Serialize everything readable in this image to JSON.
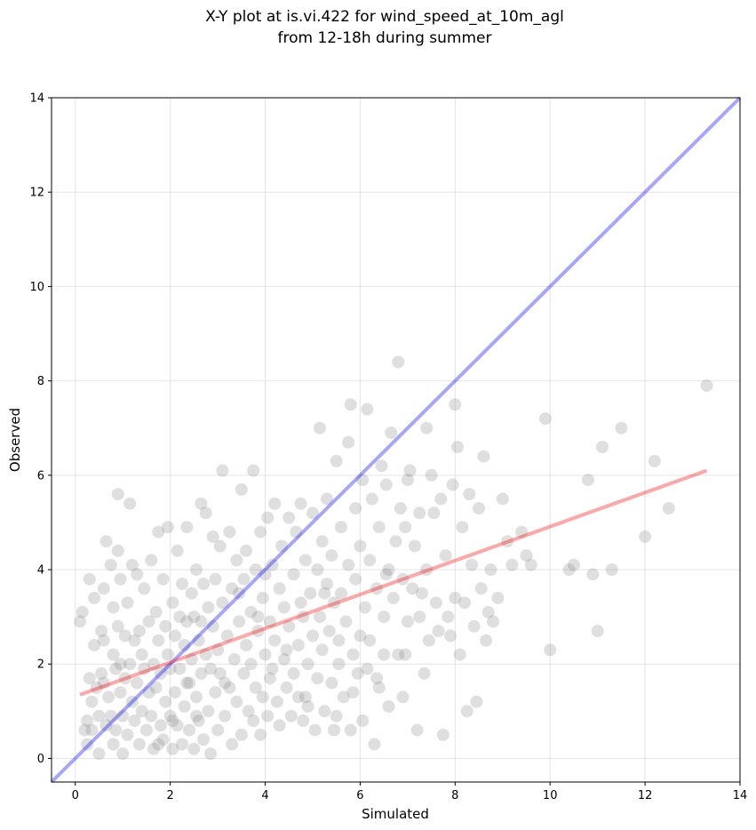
{
  "chart_data": {
    "type": "scatter",
    "title_lines": [
      "X-Y plot at is.vi.422 for wind_speed_at_10m_agl",
      "from 12-18h during summer"
    ],
    "xlabel": "Simulated",
    "ylabel": "Observed",
    "xlim": [
      -0.5,
      14
    ],
    "ylim": [
      -0.5,
      14
    ],
    "x_ticks": [
      0,
      2,
      4,
      6,
      8,
      10,
      12,
      14
    ],
    "y_ticks": [
      0,
      2,
      4,
      6,
      8,
      10,
      12,
      14
    ],
    "grid": true,
    "marker_color": "#808080",
    "reference_line": {
      "from": [
        -0.5,
        -0.5
      ],
      "to": [
        14,
        14
      ],
      "color": "#0000ff"
    },
    "fit_line": {
      "from": [
        0.1,
        1.35
      ],
      "to": [
        13.3,
        6.1
      ],
      "color": "#ff0000"
    },
    "points": [
      [
        0.1,
        2.9
      ],
      [
        0.15,
        3.1
      ],
      [
        0.2,
        0.6
      ],
      [
        0.25,
        0.8
      ],
      [
        0.25,
        0.3
      ],
      [
        0.3,
        3.8
      ],
      [
        0.3,
        1.7
      ],
      [
        0.35,
        1.2
      ],
      [
        0.35,
        0.6
      ],
      [
        0.4,
        3.4
      ],
      [
        0.4,
        2.4
      ],
      [
        0.45,
        1.5
      ],
      [
        0.5,
        0.9
      ],
      [
        0.5,
        0.1
      ],
      [
        0.55,
        2.7
      ],
      [
        0.55,
        1.8
      ],
      [
        0.6,
        3.6
      ],
      [
        0.6,
        2.5
      ],
      [
        0.6,
        1.6
      ],
      [
        0.65,
        0.7
      ],
      [
        0.65,
        4.6
      ],
      [
        0.7,
        1.3
      ],
      [
        0.75,
        4.1
      ],
      [
        0.75,
        0.9
      ],
      [
        0.8,
        3.2
      ],
      [
        0.8,
        2.2
      ],
      [
        0.8,
        0.3
      ],
      [
        0.85,
        1.9
      ],
      [
        0.85,
        0.6
      ],
      [
        0.9,
        5.6
      ],
      [
        0.9,
        4.4
      ],
      [
        0.9,
        2.8
      ],
      [
        0.95,
        3.8
      ],
      [
        0.95,
        1.4
      ],
      [
        1.0,
        0.9
      ],
      [
        1.0,
        0.1
      ],
      [
        1.05,
        2.6
      ],
      [
        1.05,
        1.7
      ],
      [
        1.1,
        3.3
      ],
      [
        1.1,
        0.5
      ],
      [
        1.15,
        5.4
      ],
      [
        1.15,
        2.0
      ],
      [
        1.2,
        4.1
      ],
      [
        1.2,
        1.2
      ],
      [
        1.25,
        2.5
      ],
      [
        1.25,
        0.8
      ],
      [
        1.3,
        3.9
      ],
      [
        1.3,
        1.6
      ],
      [
        1.35,
        0.3
      ],
      [
        1.4,
        2.2
      ],
      [
        1.4,
        1.0
      ],
      [
        1.45,
        3.6
      ],
      [
        1.45,
        1.9
      ],
      [
        1.5,
        0.6
      ],
      [
        1.55,
        2.9
      ],
      [
        1.55,
        1.4
      ],
      [
        1.6,
        4.2
      ],
      [
        1.6,
        0.9
      ],
      [
        1.65,
        2.0
      ],
      [
        1.65,
        0.2
      ],
      [
        1.7,
        3.1
      ],
      [
        1.7,
        1.5
      ],
      [
        1.75,
        4.8
      ],
      [
        1.75,
        2.5
      ],
      [
        1.8,
        0.7
      ],
      [
        1.8,
        1.8
      ],
      [
        1.85,
        3.8
      ],
      [
        1.85,
        0.4
      ],
      [
        1.9,
        2.8
      ],
      [
        1.9,
        1.2
      ],
      [
        1.95,
        4.9
      ],
      [
        1.95,
        2.2
      ],
      [
        2.0,
        0.9
      ],
      [
        2.0,
        1.9
      ],
      [
        2.05,
        3.3
      ],
      [
        2.05,
        0.2
      ],
      [
        2.1,
        2.6
      ],
      [
        2.1,
        1.4
      ],
      [
        2.15,
        4.4
      ],
      [
        2.15,
        0.7
      ],
      [
        2.2,
        3.0
      ],
      [
        2.2,
        1.9
      ],
      [
        2.25,
        3.7
      ],
      [
        2.25,
        0.3
      ],
      [
        2.3,
        2.4
      ],
      [
        2.3,
        1.1
      ],
      [
        2.35,
        4.9
      ],
      [
        2.35,
        2.9
      ],
      [
        2.4,
        0.6
      ],
      [
        2.4,
        1.6
      ],
      [
        2.45,
        3.5
      ],
      [
        2.45,
        2.1
      ],
      [
        2.5,
        0.2
      ],
      [
        2.5,
        3.0
      ],
      [
        2.55,
        1.3
      ],
      [
        2.55,
        4.0
      ],
      [
        2.6,
        2.5
      ],
      [
        2.6,
        0.8
      ],
      [
        2.65,
        5.4
      ],
      [
        2.65,
        1.8
      ],
      [
        2.7,
        3.7
      ],
      [
        2.7,
        0.4
      ],
      [
        2.75,
        2.2
      ],
      [
        2.75,
        5.2
      ],
      [
        2.8,
        1.0
      ],
      [
        2.8,
        3.2
      ],
      [
        2.85,
        1.9
      ],
      [
        2.85,
        0.1
      ],
      [
        2.9,
        4.7
      ],
      [
        2.9,
        2.8
      ],
      [
        2.95,
        1.4
      ],
      [
        2.95,
        3.8
      ],
      [
        3.0,
        0.6
      ],
      [
        3.0,
        2.3
      ],
      [
        3.05,
        4.5
      ],
      [
        3.05,
        1.8
      ],
      [
        3.1,
        6.1
      ],
      [
        3.1,
        3.3
      ],
      [
        3.15,
        0.9
      ],
      [
        3.2,
        2.6
      ],
      [
        3.25,
        4.8
      ],
      [
        3.25,
        1.5
      ],
      [
        3.3,
        3.6
      ],
      [
        3.3,
        0.3
      ],
      [
        3.35,
        2.1
      ],
      [
        3.4,
        4.2
      ],
      [
        3.4,
        1.2
      ],
      [
        3.45,
        2.9
      ],
      [
        3.5,
        5.7
      ],
      [
        3.5,
        0.5
      ],
      [
        3.55,
        3.8
      ],
      [
        3.55,
        1.8
      ],
      [
        3.6,
        2.4
      ],
      [
        3.6,
        4.4
      ],
      [
        3.65,
        1.0
      ],
      [
        3.7,
        3.1
      ],
      [
        3.7,
        2.0
      ],
      [
        3.75,
        6.1
      ],
      [
        3.75,
        0.8
      ],
      [
        3.8,
        4.0
      ],
      [
        3.8,
        1.5
      ],
      [
        3.85,
        2.7
      ],
      [
        3.9,
        4.8
      ],
      [
        3.9,
        0.5
      ],
      [
        3.95,
        3.4
      ],
      [
        3.95,
        1.3
      ],
      [
        4.0,
        2.2
      ],
      [
        4.0,
        3.9
      ],
      [
        4.05,
        5.1
      ],
      [
        4.05,
        0.9
      ],
      [
        4.1,
        2.9
      ],
      [
        4.1,
        1.7
      ],
      [
        4.15,
        4.1
      ],
      [
        4.2,
        2.5
      ],
      [
        4.2,
        5.4
      ],
      [
        4.25,
        1.2
      ],
      [
        4.3,
        3.6
      ],
      [
        4.3,
        0.7
      ],
      [
        4.35,
        4.5
      ],
      [
        4.4,
        2.1
      ],
      [
        4.4,
        3.2
      ],
      [
        4.45,
        1.5
      ],
      [
        4.5,
        5.1
      ],
      [
        4.5,
        2.8
      ],
      [
        4.55,
        0.9
      ],
      [
        4.6,
        3.9
      ],
      [
        4.6,
        1.8
      ],
      [
        4.65,
        4.8
      ],
      [
        4.7,
        2.4
      ],
      [
        4.7,
        1.3
      ],
      [
        4.75,
        5.4
      ],
      [
        4.8,
        3.0
      ],
      [
        4.8,
        0.8
      ],
      [
        4.85,
        4.2
      ],
      [
        4.9,
        2.0
      ],
      [
        4.9,
        1.1
      ],
      [
        4.95,
        3.5
      ],
      [
        5.0,
        5.2
      ],
      [
        5.0,
        2.6
      ],
      [
        5.05,
        0.6
      ],
      [
        5.1,
        4.0
      ],
      [
        5.1,
        1.7
      ],
      [
        5.15,
        7.0
      ],
      [
        5.15,
        3.0
      ],
      [
        5.2,
        4.6
      ],
      [
        5.2,
        2.3
      ],
      [
        5.25,
        1.0
      ],
      [
        5.3,
        5.5
      ],
      [
        5.3,
        3.7
      ],
      [
        5.35,
        2.7
      ],
      [
        5.4,
        1.6
      ],
      [
        5.4,
        4.3
      ],
      [
        5.45,
        3.3
      ],
      [
        5.5,
        6.3
      ],
      [
        5.5,
        0.9
      ],
      [
        5.55,
        2.0
      ],
      [
        5.6,
        4.9
      ],
      [
        5.6,
        3.5
      ],
      [
        5.65,
        1.3
      ],
      [
        5.7,
        2.9
      ],
      [
        5.75,
        6.7
      ],
      [
        5.75,
        4.1
      ],
      [
        5.8,
        7.5
      ],
      [
        5.8,
        0.6
      ],
      [
        5.85,
        2.2
      ],
      [
        5.9,
        5.3
      ],
      [
        5.9,
        3.8
      ],
      [
        5.95,
        1.8
      ],
      [
        6.0,
        4.5
      ],
      [
        6.0,
        2.6
      ],
      [
        6.05,
        5.9
      ],
      [
        6.05,
        0.8
      ],
      [
        6.1,
        3.2
      ],
      [
        6.15,
        7.4
      ],
      [
        6.15,
        1.9
      ],
      [
        6.2,
        4.2
      ],
      [
        6.2,
        2.5
      ],
      [
        6.25,
        5.5
      ],
      [
        6.3,
        0.3
      ],
      [
        6.35,
        3.6
      ],
      [
        6.4,
        4.9
      ],
      [
        6.4,
        1.5
      ],
      [
        6.45,
        6.2
      ],
      [
        6.5,
        3.0
      ],
      [
        6.5,
        2.2
      ],
      [
        6.55,
        5.8
      ],
      [
        6.6,
        4.0
      ],
      [
        6.6,
        1.1
      ],
      [
        6.65,
        6.9
      ],
      [
        6.7,
        3.4
      ],
      [
        6.75,
        4.6
      ],
      [
        6.8,
        8.4
      ],
      [
        6.8,
        2.2
      ],
      [
        6.85,
        5.3
      ],
      [
        6.9,
        1.3
      ],
      [
        6.9,
        3.8
      ],
      [
        6.95,
        4.9
      ],
      [
        7.0,
        5.9
      ],
      [
        7.0,
        2.9
      ],
      [
        7.05,
        6.1
      ],
      [
        7.1,
        3.6
      ],
      [
        7.15,
        4.5
      ],
      [
        7.2,
        0.6
      ],
      [
        7.25,
        5.2
      ],
      [
        7.3,
        3.5
      ],
      [
        7.35,
        1.8
      ],
      [
        7.4,
        7.0
      ],
      [
        7.4,
        4.0
      ],
      [
        7.45,
        2.5
      ],
      [
        7.5,
        6.0
      ],
      [
        7.55,
        5.2
      ],
      [
        7.6,
        3.3
      ],
      [
        7.65,
        2.7
      ],
      [
        7.7,
        5.5
      ],
      [
        7.75,
        0.5
      ],
      [
        7.8,
        4.3
      ],
      [
        7.85,
        3.0
      ],
      [
        7.9,
        2.6
      ],
      [
        7.95,
        5.8
      ],
      [
        8.0,
        7.5
      ],
      [
        8.0,
        3.4
      ],
      [
        8.05,
        6.6
      ],
      [
        8.1,
        2.2
      ],
      [
        8.15,
        4.9
      ],
      [
        8.2,
        3.3
      ],
      [
        8.25,
        1.0
      ],
      [
        8.3,
        5.6
      ],
      [
        8.35,
        4.1
      ],
      [
        8.4,
        2.8
      ],
      [
        8.45,
        1.2
      ],
      [
        8.5,
        5.3
      ],
      [
        8.55,
        3.6
      ],
      [
        8.6,
        6.4
      ],
      [
        8.65,
        2.5
      ],
      [
        8.7,
        3.1
      ],
      [
        8.75,
        4.0
      ],
      [
        8.8,
        2.9
      ],
      [
        8.9,
        3.4
      ],
      [
        9.0,
        5.5
      ],
      [
        9.1,
        4.6
      ],
      [
        9.2,
        4.1
      ],
      [
        9.4,
        4.8
      ],
      [
        9.5,
        4.3
      ],
      [
        9.6,
        4.1
      ],
      [
        9.9,
        7.2
      ],
      [
        10.0,
        2.3
      ],
      [
        10.4,
        4.0
      ],
      [
        10.5,
        4.1
      ],
      [
        10.8,
        5.9
      ],
      [
        10.9,
        3.9
      ],
      [
        11.0,
        2.7
      ],
      [
        11.1,
        6.6
      ],
      [
        11.3,
        4.0
      ],
      [
        11.5,
        7.0
      ],
      [
        12.0,
        4.7
      ],
      [
        12.2,
        6.3
      ],
      [
        12.5,
        5.3
      ],
      [
        13.3,
        7.9
      ],
      [
        2.05,
        0.8
      ],
      [
        2.35,
        1.6
      ],
      [
        1.35,
        2.7
      ],
      [
        0.95,
        2.0
      ],
      [
        1.75,
        0.3
      ],
      [
        2.55,
        0.9
      ],
      [
        3.15,
        1.6
      ],
      [
        3.45,
        3.5
      ],
      [
        4.15,
        1.9
      ],
      [
        4.45,
        2.3
      ],
      [
        4.75,
        3.3
      ],
      [
        5.25,
        3.5
      ],
      [
        5.55,
        2.5
      ],
      [
        5.85,
        1.4
      ],
      [
        6.35,
        1.7
      ],
      [
        6.55,
        3.9
      ],
      [
        6.95,
        2.2
      ],
      [
        7.25,
        3.0
      ],
      [
        5.45,
        0.6
      ],
      [
        4.85,
        1.3
      ],
      [
        3.85,
        3.0
      ],
      [
        2.65,
        2.9
      ]
    ]
  }
}
